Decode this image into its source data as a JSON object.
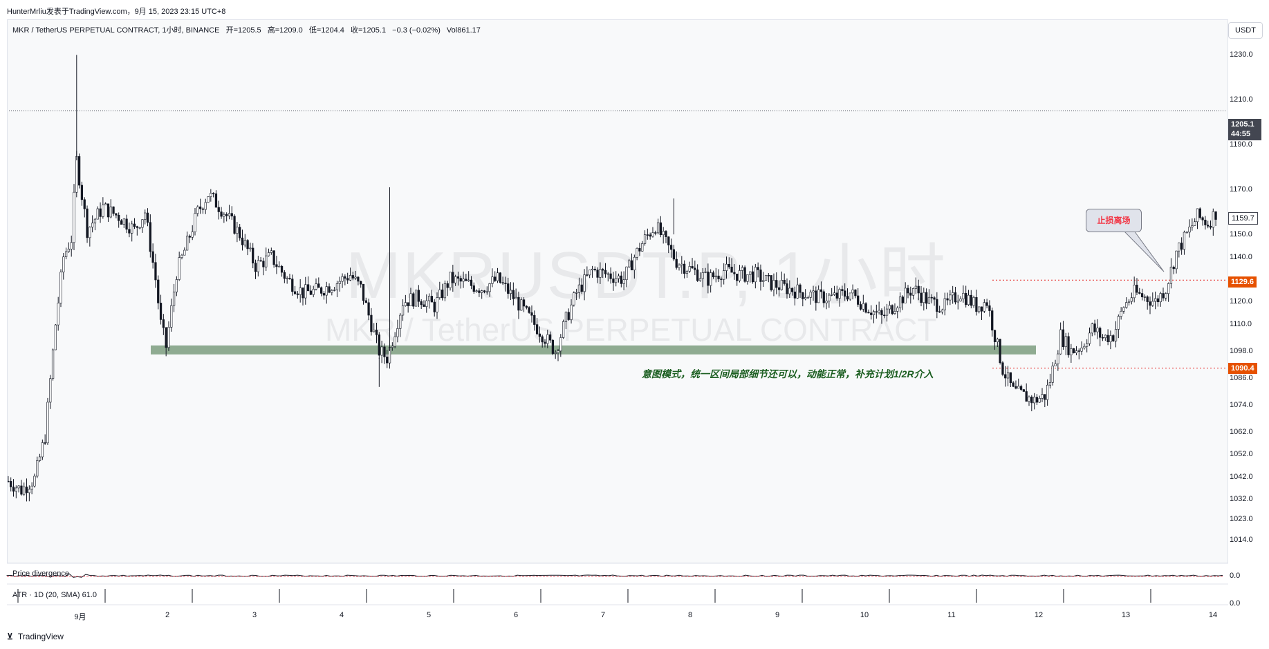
{
  "header": {
    "attribution": "HunterMrliu发表于TradingView.com，9月 15, 2023 23:15 UTC+8"
  },
  "symbol": {
    "name": "MKR / TetherUS PERPETUAL CONTRACT, 1小时, BINANCE",
    "open": "开=1205.5",
    "high": "高=1209.0",
    "low": "低=1204.4",
    "close": "收=1205.1",
    "change": "−0.3 (−0.02%)",
    "volume": "Vol861.17"
  },
  "currency_button": "USDT",
  "watermark": {
    "line1": "MKRUSDT.P, 1小时",
    "line2": "MKR / TetherUS PERPETUAL CONTRACT"
  },
  "price_tags": {
    "current_price": "1205.1",
    "countdown": "44:55",
    "last_visible": "1159.7",
    "stop_line": "1129.6",
    "support_line": "1090.4"
  },
  "annotations": {
    "green_note": "意图模式，统一区间局部细节还可以，动能正常，补充计划1/2R介入",
    "callout": "止损离场"
  },
  "indicators": {
    "divergence_label": "Price divergence",
    "divergence_value": "0.0",
    "atr_label": "ATR · 1D (20, SMA)  61.0",
    "atr_value": "0.0"
  },
  "x_axis": [
    "9月",
    "2",
    "3",
    "4",
    "5",
    "6",
    "7",
    "8",
    "9",
    "10",
    "11",
    "12",
    "13",
    "14"
  ],
  "y_axis": [
    "1230.0",
    "1210.0",
    "1190.0",
    "1170.0",
    "1150.0",
    "1140.0",
    "1120.0",
    "1110.0",
    "1098.0",
    "1086.0",
    "1074.0",
    "1062.0",
    "1052.0",
    "1042.0",
    "1032.0",
    "1023.0",
    "1014.0"
  ],
  "footer": {
    "brand": "TradingView"
  },
  "colors": {
    "up_candle": "#ffffff",
    "down_candle": "#131722",
    "zone": "#7d9e7e",
    "stop_line": "#e53935",
    "tag_orange": "#e65100",
    "text_green": "#1b5e20"
  },
  "chart_data": {
    "type": "candlestick",
    "ylim": [
      1008,
      1236
    ],
    "price_levels": {
      "current": 1205.1,
      "stop": 1129.6,
      "support": 1090.4
    },
    "zone": [
      1096.5,
      1100.5
    ],
    "x_categories": [
      "9月",
      "2",
      "3",
      "4",
      "5",
      "6",
      "7",
      "8",
      "9",
      "10",
      "11",
      "12",
      "13",
      "14"
    ],
    "close_path": [
      [
        0,
        1040
      ],
      [
        5,
        1036
      ],
      [
        10,
        1041
      ],
      [
        14,
        1060
      ],
      [
        18,
        1110
      ],
      [
        21,
        1140
      ],
      [
        24,
        1148
      ],
      [
        26,
        1183
      ],
      [
        30,
        1152
      ],
      [
        36,
        1162
      ],
      [
        42,
        1158
      ],
      [
        48,
        1152
      ],
      [
        52,
        1160
      ],
      [
        56,
        1130
      ],
      [
        58,
        1110
      ],
      [
        60,
        1100
      ],
      [
        64,
        1133
      ],
      [
        68,
        1146
      ],
      [
        72,
        1160
      ],
      [
        76,
        1168
      ],
      [
        82,
        1160
      ],
      [
        88,
        1150
      ],
      [
        94,
        1136
      ],
      [
        100,
        1140
      ],
      [
        106,
        1130
      ],
      [
        112,
        1124
      ],
      [
        118,
        1125
      ],
      [
        124,
        1128
      ],
      [
        130,
        1132
      ],
      [
        134,
        1126
      ],
      [
        138,
        1110
      ],
      [
        141,
        1098
      ],
      [
        144,
        1095
      ],
      [
        146,
        1103
      ],
      [
        150,
        1120
      ],
      [
        156,
        1122
      ],
      [
        162,
        1118
      ],
      [
        168,
        1130
      ],
      [
        174,
        1128
      ],
      [
        180,
        1126
      ],
      [
        186,
        1130
      ],
      [
        192,
        1122
      ],
      [
        196,
        1116
      ],
      [
        200,
        1110
      ],
      [
        204,
        1104
      ],
      [
        208,
        1098
      ],
      [
        212,
        1112
      ],
      [
        216,
        1124
      ],
      [
        222,
        1134
      ],
      [
        228,
        1132
      ],
      [
        234,
        1130
      ],
      [
        238,
        1140
      ],
      [
        242,
        1148
      ],
      [
        246,
        1154
      ],
      [
        250,
        1146
      ],
      [
        254,
        1138
      ],
      [
        260,
        1134
      ],
      [
        266,
        1130
      ],
      [
        272,
        1134
      ],
      [
        278,
        1132
      ],
      [
        284,
        1132
      ],
      [
        290,
        1128
      ],
      [
        296,
        1126
      ],
      [
        302,
        1124
      ],
      [
        308,
        1122
      ],
      [
        314,
        1122
      ],
      [
        320,
        1124
      ],
      [
        326,
        1118
      ],
      [
        332,
        1113
      ],
      [
        338,
        1120
      ],
      [
        344,
        1126
      ],
      [
        350,
        1120
      ],
      [
        356,
        1118
      ],
      [
        362,
        1124
      ],
      [
        368,
        1118
      ],
      [
        372,
        1120
      ],
      [
        375,
        1105
      ],
      [
        378,
        1090
      ],
      [
        382,
        1080
      ],
      [
        386,
        1078
      ],
      [
        390,
        1076
      ],
      [
        394,
        1078
      ],
      [
        396,
        1085
      ],
      [
        400,
        1105
      ],
      [
        404,
        1098
      ],
      [
        408,
        1100
      ],
      [
        412,
        1108
      ],
      [
        416,
        1104
      ],
      [
        420,
        1105
      ],
      [
        424,
        1118
      ],
      [
        428,
        1124
      ],
      [
        432,
        1122
      ],
      [
        436,
        1120
      ],
      [
        440,
        1126
      ],
      [
        444,
        1142
      ],
      [
        448,
        1150
      ],
      [
        452,
        1158
      ],
      [
        456,
        1155
      ],
      [
        459,
        1159.7
      ]
    ]
  }
}
